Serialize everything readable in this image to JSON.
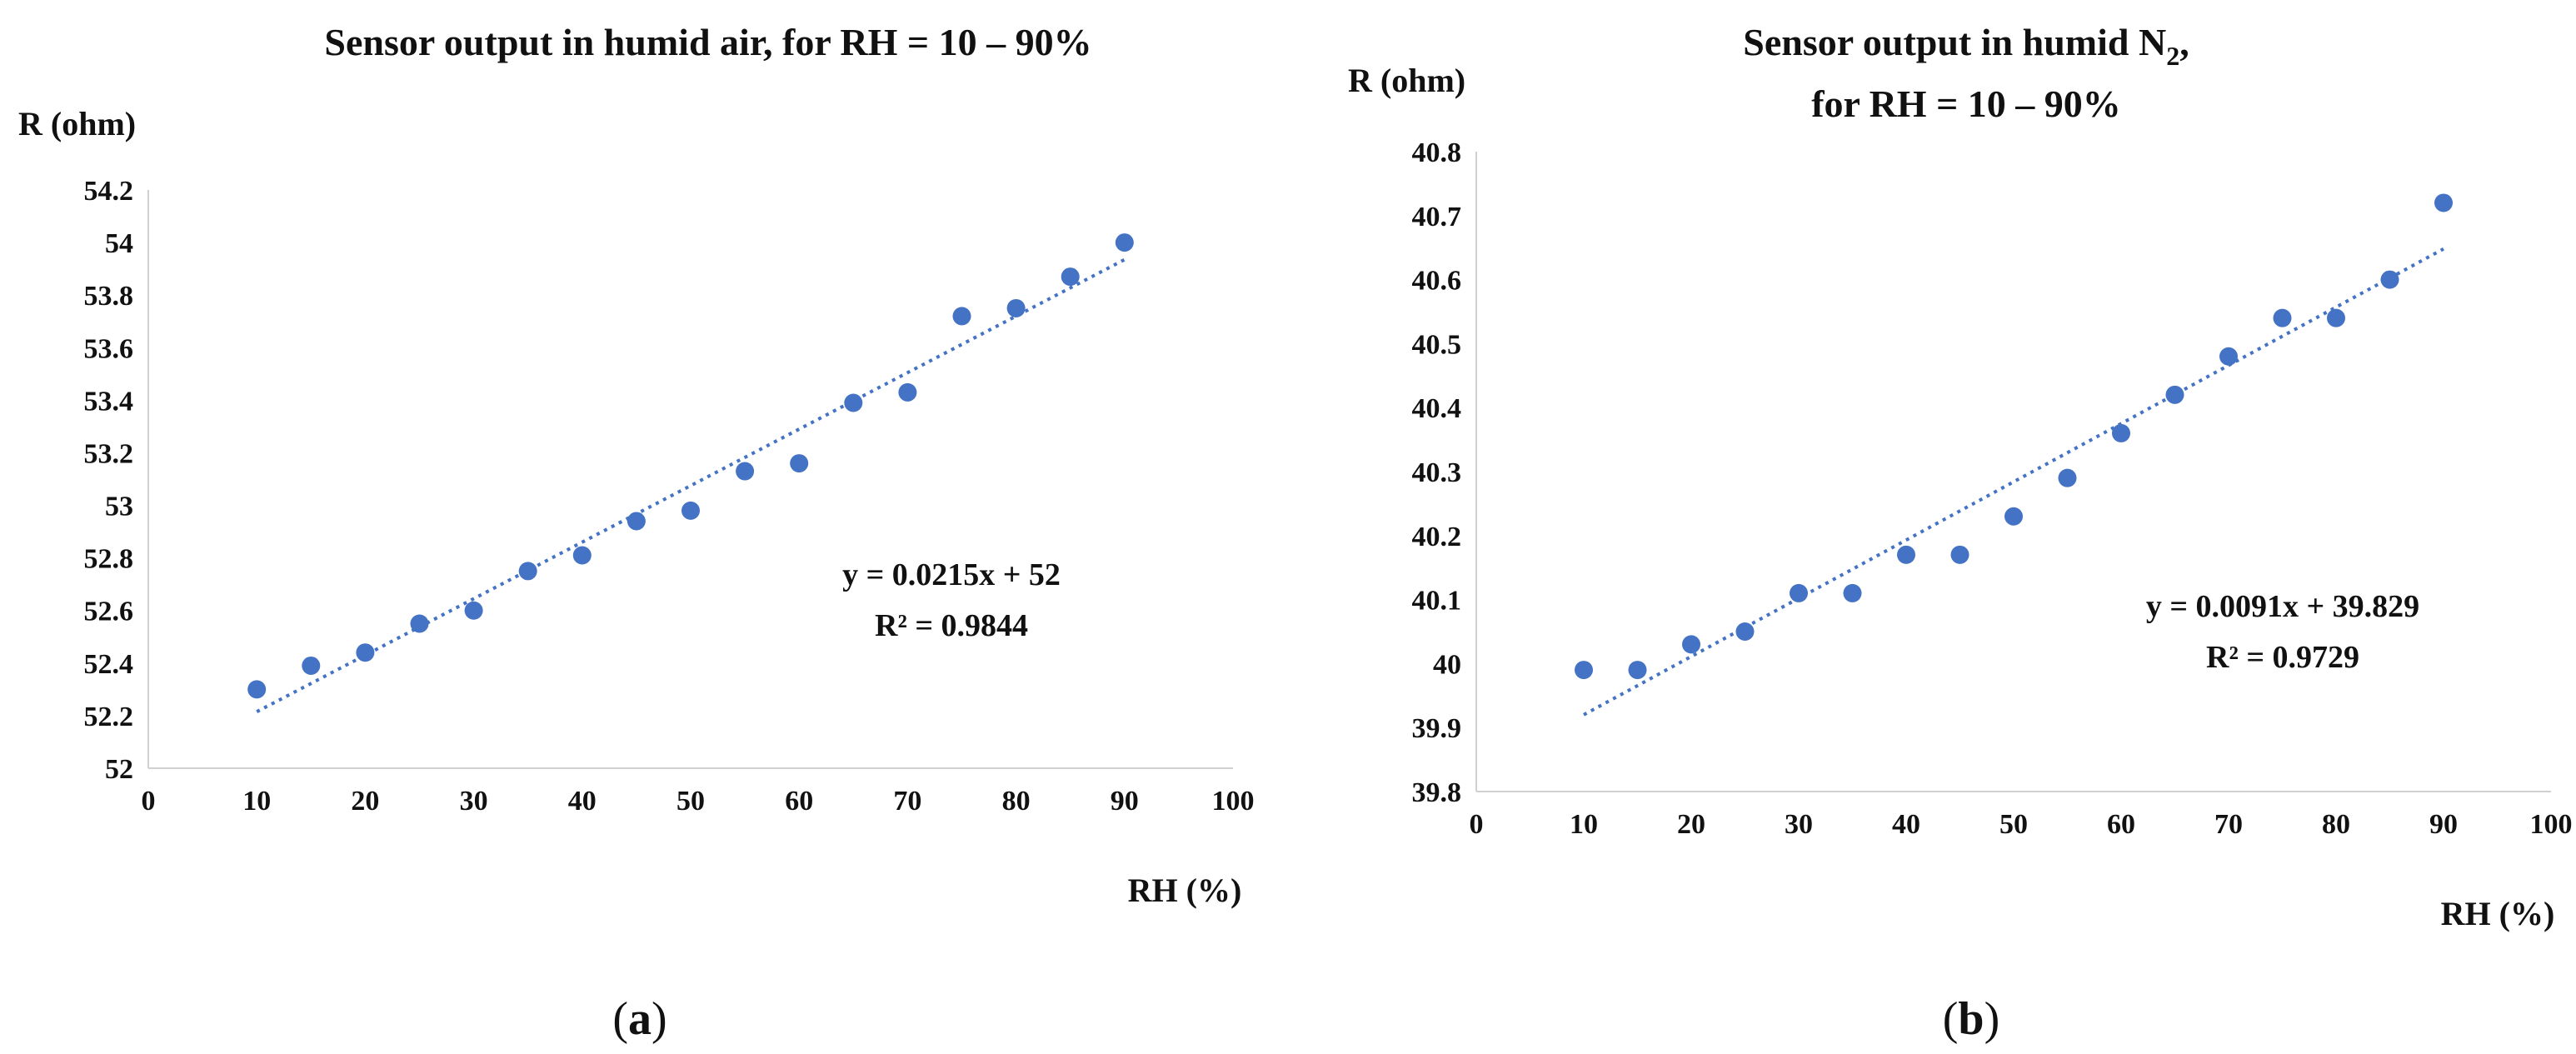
{
  "chart_data": [
    {
      "type": "scatter",
      "title": "Sensor output in humid air, for RH = 10 – 90%",
      "xlabel": "RH (%)",
      "ylabel": "R (ohm)",
      "xlim": [
        0,
        100
      ],
      "ylim": [
        52,
        54.2
      ],
      "xticks": [
        0,
        10,
        20,
        30,
        40,
        50,
        60,
        70,
        80,
        90,
        100
      ],
      "yticks": [
        52,
        52.2,
        52.4,
        52.6,
        52.8,
        53,
        53.2,
        53.4,
        53.6,
        53.8,
        54,
        54.2
      ],
      "x": [
        10,
        15,
        20,
        25,
        30,
        35,
        40,
        45,
        50,
        55,
        60,
        65,
        70,
        75,
        80,
        85,
        90
      ],
      "y": [
        52.3,
        52.39,
        52.44,
        52.55,
        52.6,
        52.75,
        52.81,
        52.94,
        52.98,
        53.13,
        53.16,
        53.39,
        53.43,
        53.72,
        53.75,
        53.87,
        54.0
      ],
      "trendline": {
        "slope": 0.0215,
        "intercept": 52,
        "x_range": [
          10,
          90
        ],
        "equation": "y = 0.0215x + 52",
        "r2": "R² = 0.9844"
      },
      "panel_label": "a",
      "grid": false
    },
    {
      "type": "scatter",
      "title": "Sensor output in humid N",
      "title_sub": "2",
      "title_after": ",",
      "title_line2": "for RH = 10 – 90%",
      "xlabel": "RH (%)",
      "ylabel": "R (ohm)",
      "xlim": [
        0,
        100
      ],
      "ylim": [
        39.8,
        40.8
      ],
      "xticks": [
        0,
        10,
        20,
        30,
        40,
        50,
        60,
        70,
        80,
        90,
        100
      ],
      "yticks": [
        39.8,
        39.9,
        40,
        40.1,
        40.2,
        40.3,
        40.4,
        40.5,
        40.6,
        40.7,
        40.8
      ],
      "x": [
        10,
        15,
        20,
        25,
        30,
        35,
        40,
        45,
        50,
        55,
        60,
        65,
        70,
        75,
        80,
        85,
        90
      ],
      "y": [
        39.99,
        39.99,
        40.03,
        40.05,
        40.11,
        40.11,
        40.17,
        40.17,
        40.23,
        40.29,
        40.36,
        40.42,
        40.48,
        40.54,
        40.54,
        40.6,
        40.72
      ],
      "trendline": {
        "slope": 0.0091,
        "intercept": 39.829,
        "x_range": [
          10,
          90
        ],
        "equation": "y = 0.0091x + 39.829",
        "r2": "R² = 0.9729"
      },
      "panel_label": "b",
      "grid": false
    }
  ],
  "panel_labels": {
    "open": "(",
    "close": ")"
  },
  "colors": {
    "marker": "#4472c4",
    "axis": "#d0d0d0",
    "text": "#111111"
  }
}
